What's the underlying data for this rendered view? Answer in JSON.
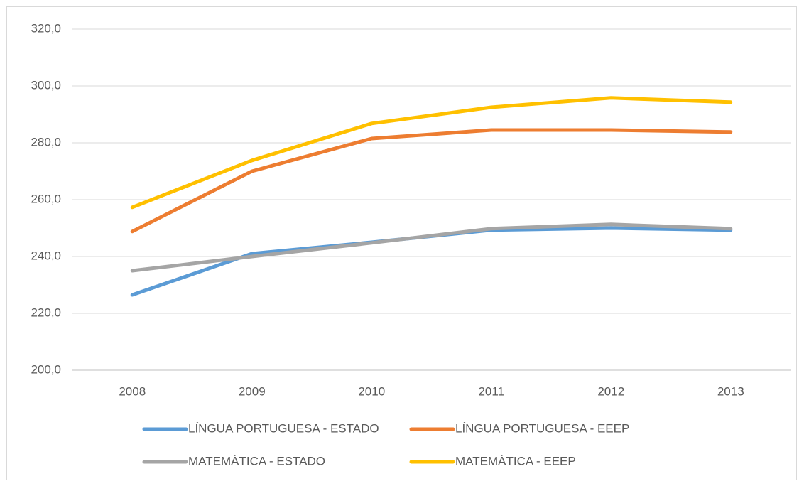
{
  "chart_data": {
    "type": "line",
    "categories": [
      "2008",
      "2009",
      "2010",
      "2011",
      "2012",
      "2013"
    ],
    "series": [
      {
        "name": "LÍNGUA PORTUGUESA - ESTADO",
        "color": "#5b9bd5",
        "values": [
          226.5,
          241.0,
          245.0,
          249.3,
          250.0,
          249.3
        ]
      },
      {
        "name": "LÍNGUA PORTUGUESA - EEEP",
        "color": "#ed7d31",
        "values": [
          248.8,
          270.0,
          281.5,
          284.5,
          284.5,
          283.8
        ]
      },
      {
        "name": "MATEMÁTICA - ESTADO",
        "color": "#a5a5a5",
        "values": [
          235.0,
          240.0,
          244.8,
          249.8,
          251.3,
          249.8
        ]
      },
      {
        "name": "MATEMÁTICA - EEEP",
        "color": "#ffc000",
        "values": [
          257.3,
          273.8,
          286.8,
          292.5,
          295.8,
          294.3
        ]
      }
    ],
    "ylim": [
      200,
      320
    ],
    "yticks": [
      {
        "value": 200,
        "label": "200,0"
      },
      {
        "value": 220,
        "label": "220,0"
      },
      {
        "value": 240,
        "label": "240,0"
      },
      {
        "value": 260,
        "label": "260,0"
      },
      {
        "value": 280,
        "label": "280,0"
      },
      {
        "value": 300,
        "label": "300,0"
      },
      {
        "value": 320,
        "label": "320,0"
      }
    ],
    "grid": true,
    "legend": "bottom"
  }
}
